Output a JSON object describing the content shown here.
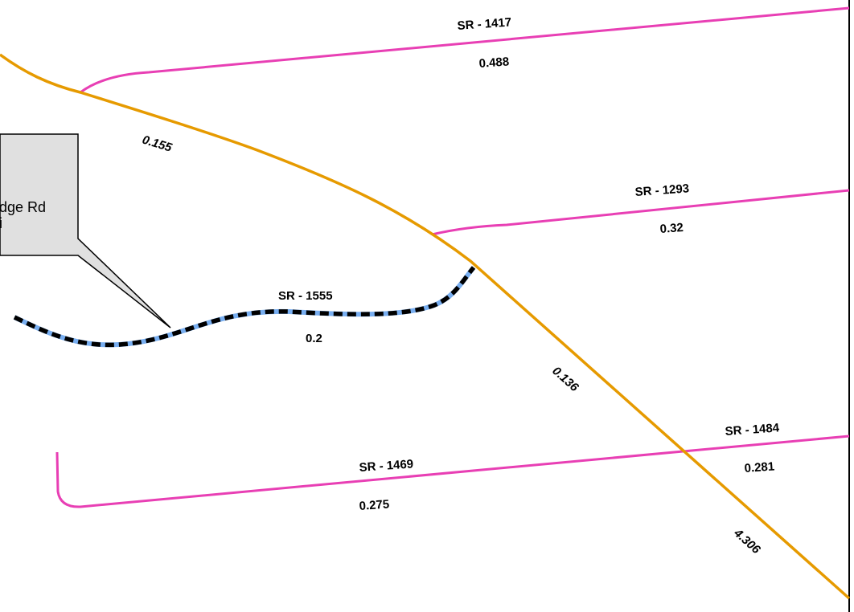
{
  "map": {
    "colors": {
      "highway": "#e69a00",
      "secondary_road": "#e83fb4",
      "highlight_casing": "#78aef0",
      "highlight_dash": "#000000",
      "callout_fill": "#e0e0e0",
      "callout_stroke": "#000000",
      "frame": "#000000"
    },
    "highlighted_road": {
      "name": "SR - 1555",
      "length": "0.2"
    },
    "callout": {
      "line1": "dge Rd",
      "line2": "i"
    },
    "roads": [
      {
        "name": "SR - 1417",
        "length": "0.488"
      },
      {
        "name": "SR - 1293",
        "length": "0.32"
      },
      {
        "name": "SR - 1469",
        "length": "0.275"
      },
      {
        "name": "SR - 1484",
        "length": "0.281"
      }
    ],
    "highway_segments": [
      {
        "length": "0.155"
      },
      {
        "length": "0.136"
      },
      {
        "length": "4.306"
      }
    ]
  }
}
